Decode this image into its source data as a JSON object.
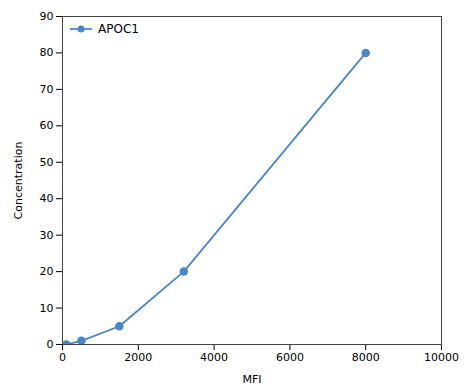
{
  "chart_data": {
    "type": "line",
    "x": [
      100,
      500,
      1500,
      3200,
      8000
    ],
    "series": [
      {
        "name": "APOC1",
        "color": "#4a86c8",
        "marker": "circle",
        "values": [
          0,
          1,
          5,
          20,
          80
        ]
      }
    ],
    "xlabel": "MFI",
    "ylabel": "Concentration",
    "xlim": [
      0,
      10000
    ],
    "ylim": [
      0,
      90
    ],
    "xticks": [
      0,
      2000,
      4000,
      6000,
      8000,
      10000
    ],
    "yticks": [
      0,
      10,
      20,
      30,
      40,
      50,
      60,
      70,
      80,
      90
    ],
    "legend": "upper left"
  }
}
